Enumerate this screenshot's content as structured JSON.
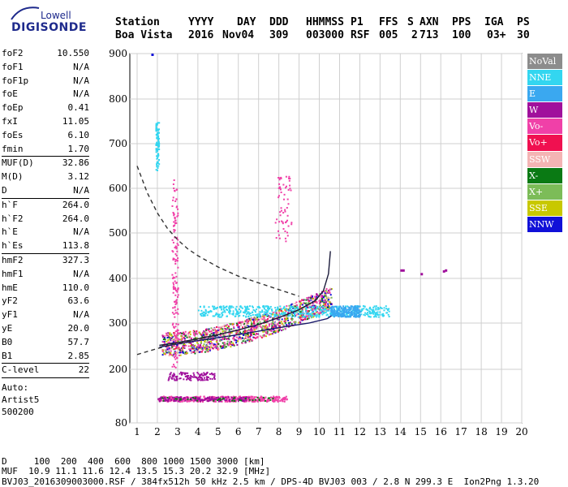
{
  "logo": {
    "line1": "Lowell",
    "line2": "DIGISONDE"
  },
  "header": {
    "labels": [
      "Station",
      "YYYY",
      "DAY",
      "DDD",
      "HHMMSS",
      "P1",
      "FFS",
      "S",
      "AXN",
      "PPS",
      "IGA",
      "PS"
    ],
    "values": [
      "Boa Vista",
      "2016",
      "Nov04",
      "309",
      "003000",
      "RSF",
      "005",
      "2",
      "713",
      "100",
      "03+",
      "30"
    ]
  },
  "params": {
    "group1": [
      {
        "k": "foF2",
        "v": "10.550"
      },
      {
        "k": "foF1",
        "v": "N/A"
      },
      {
        "k": "foF1p",
        "v": "N/A"
      },
      {
        "k": "foE",
        "v": "N/A"
      },
      {
        "k": "foEp",
        "v": "0.41"
      },
      {
        "k": "fxI",
        "v": "11.05"
      },
      {
        "k": "foEs",
        "v": "6.10"
      },
      {
        "k": "fmin",
        "v": "1.70"
      }
    ],
    "group2": [
      {
        "k": "MUF(D)",
        "v": "32.86"
      },
      {
        "k": "M(D)",
        "v": "3.12"
      },
      {
        "k": "D",
        "v": "N/A"
      }
    ],
    "group3": [
      {
        "k": "h`F",
        "v": "264.0"
      },
      {
        "k": "h`F2",
        "v": "264.0"
      },
      {
        "k": "h`E",
        "v": "N/A"
      },
      {
        "k": "h`Es",
        "v": "113.8"
      }
    ],
    "group4": [
      {
        "k": "hmF2",
        "v": "327.3"
      },
      {
        "k": "hmF1",
        "v": "N/A"
      },
      {
        "k": "hmE",
        "v": "110.0"
      },
      {
        "k": "yF2",
        "v": "63.6"
      },
      {
        "k": "yF1",
        "v": "N/A"
      },
      {
        "k": "yE",
        "v": "20.0"
      },
      {
        "k": "B0",
        "v": "57.7"
      },
      {
        "k": "B1",
        "v": "2.85"
      }
    ],
    "group5": [
      {
        "k": "C-level",
        "v": "22"
      }
    ],
    "auto": [
      "Auto:",
      "Artist5",
      "500200"
    ]
  },
  "legend": [
    {
      "label": "NoVal",
      "color": "#8c8c8c"
    },
    {
      "label": "NNE",
      "color": "#33d6f0"
    },
    {
      "label": "E",
      "color": "#3aa8f0"
    },
    {
      "label": "W",
      "color": "#a0109c"
    },
    {
      "label": "Vo-",
      "color": "#f040a8"
    },
    {
      "label": "Vo+",
      "color": "#f01050"
    },
    {
      "label": "SSW",
      "color": "#f4b4b4"
    },
    {
      "label": "X-",
      "color": "#0a7a14"
    },
    {
      "label": "X+",
      "color": "#7cbc58"
    },
    {
      "label": "SSE",
      "color": "#c8c800"
    },
    {
      "label": "NNW",
      "color": "#1010d8"
    }
  ],
  "footer": {
    "d_row": "D     100  200  400  600  800 1000 1500 3000 [km]",
    "muf_row": "MUF  10.9 11.1 11.6 12.4 13.5 15.3 20.2 32.9 [MHz]",
    "file_row": "BVJ03_2016309003000.RSF / 384fx512h 50 kHz 2.5 km / DPS-4D BVJ03 003 / 2.8 N 299.3 E  Ion2Png 1.3.20"
  },
  "chart_data": {
    "type": "scatter",
    "xlabel": "",
    "ylabel": "",
    "xlim": [
      1,
      20
    ],
    "ylim": [
      80,
      900
    ],
    "x_ticks": [
      1,
      2,
      3,
      4,
      5,
      6,
      7,
      8,
      9,
      10,
      11,
      12,
      13,
      14,
      15,
      16,
      17,
      18,
      19,
      20
    ],
    "y_ticks": [
      80,
      200,
      300,
      400,
      500,
      600,
      700,
      800,
      900
    ],
    "grid": true,
    "traces": {
      "es_layer": {
        "color": "#f040a8",
        "alt_color": "#a0109c",
        "x_range": [
          2.0,
          8.4
        ],
        "height": 135
      },
      "es_upper": {
        "color": "#a0109c",
        "x_range": [
          2.5,
          4.8
        ],
        "height": 185
      },
      "f2_main": {
        "color": "#f040a8",
        "x_range": [
          2.2,
          10.6
        ],
        "h_start": 255,
        "h_end": 360
      },
      "f2_x": {
        "color": "#33d6f0",
        "x_range": [
          4.0,
          13.5
        ],
        "height": 330
      },
      "nnw_dots": {
        "color": "#1010d8",
        "points": [
          [
            1.7,
            900
          ]
        ]
      },
      "spread_high": {
        "color": "#33d6f0",
        "points": [
          [
            1.9,
            735
          ],
          [
            1.9,
            700
          ],
          [
            1.95,
            660
          ]
        ]
      },
      "far_dots": {
        "color": "#a0109c",
        "points": [
          [
            14.0,
            420
          ],
          [
            16.2,
            420
          ],
          [
            16.1,
            418
          ],
          [
            15.0,
            412
          ],
          [
            14.1,
            420
          ]
        ]
      }
    },
    "curves": {
      "x_trace_fit": {
        "style": "solid",
        "color": "#1a1a6a",
        "points": [
          [
            2.1,
            248
          ],
          [
            4,
            262
          ],
          [
            6,
            275
          ],
          [
            8,
            290
          ],
          [
            9.5,
            300
          ],
          [
            10.4,
            310
          ],
          [
            10.6,
            316
          ]
        ]
      },
      "o_trace_fit": {
        "style": "solid",
        "color": "#1a1a3a",
        "points": [
          [
            2.1,
            252
          ],
          [
            3,
            258
          ],
          [
            4,
            266
          ],
          [
            5,
            275
          ],
          [
            6,
            285
          ],
          [
            7,
            297
          ],
          [
            8,
            312
          ],
          [
            9,
            330
          ],
          [
            9.8,
            350
          ],
          [
            10.2,
            372
          ],
          [
            10.45,
            410
          ],
          [
            10.55,
            460
          ]
        ]
      },
      "mpf_dashed": {
        "style": "dashed",
        "color": "#333333",
        "points": [
          [
            1.0,
            650
          ],
          [
            1.5,
            590
          ],
          [
            2,
            545
          ],
          [
            2.5,
            510
          ],
          [
            3,
            485
          ],
          [
            3.5,
            465
          ],
          [
            4,
            450
          ],
          [
            5,
            425
          ],
          [
            6,
            405
          ],
          [
            7,
            390
          ],
          [
            8,
            375
          ],
          [
            9,
            360
          ]
        ]
      },
      "lower_dashed": {
        "style": "dashed",
        "color": "#333333",
        "points": [
          [
            1.0,
            232
          ],
          [
            2,
            245
          ],
          [
            3,
            256
          ],
          [
            4,
            265
          ],
          [
            5,
            273
          ]
        ]
      }
    }
  }
}
